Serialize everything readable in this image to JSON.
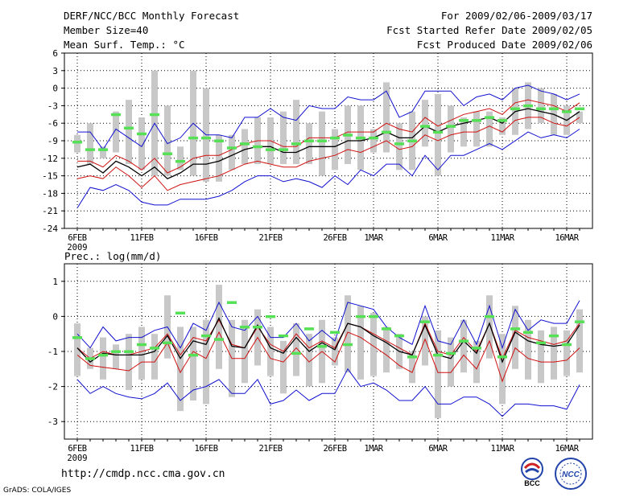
{
  "header": {
    "title": "DERF/NCC/BCC Monthly Forecast",
    "member_size": "Member Size=40",
    "variable": "Mean Surf. Temp.: °C",
    "period": "For 2009/02/06-2009/03/17",
    "start_date": "Fcst Started Refer Date 2009/02/05",
    "produced_date": "Fcst Produced Date 2009/02/06"
  },
  "footer": {
    "url": "http://cmdp.ncc.cma.gov.cn",
    "credit": "GrADS: COLA/IGES",
    "logo_left_text": "BCC",
    "logo_right_text": "NCC"
  },
  "colors": {
    "ensemble_bar": "#c8c8c8",
    "observed_mark": "#55e055",
    "ensemble_mean": "#000000",
    "spread_band": "#d01010",
    "extreme_band": "#1010d0",
    "grid": "#000000"
  },
  "chart_data": [
    {
      "type": "line",
      "title": "Mean Surf. Temp.: °C",
      "x": [
        "6FEB",
        "7FEB",
        "8FEB",
        "9FEB",
        "10FEB",
        "11FEB",
        "12FEB",
        "13FEB",
        "14FEB",
        "15FEB",
        "16FEB",
        "17FEB",
        "18FEB",
        "19FEB",
        "20FEB",
        "21FEB",
        "22FEB",
        "23FEB",
        "24FEB",
        "25FEB",
        "26FEB",
        "27FEB",
        "28FEB",
        "1MAR",
        "2MAR",
        "3MAR",
        "4MAR",
        "5MAR",
        "6MAR",
        "7MAR",
        "8MAR",
        "9MAR",
        "10MAR",
        "11MAR",
        "12MAR",
        "13MAR",
        "14MAR",
        "15MAR",
        "16MAR",
        "17MAR"
      ],
      "xtick_labels": [
        "6FEB",
        "11FEB",
        "16FEB",
        "21FEB",
        "26FEB",
        "1MAR",
        "6MAR",
        "11MAR",
        "16MAR"
      ],
      "xtick_sublabel": "2009",
      "ylim": [
        -24,
        6
      ],
      "yticks": [
        -24,
        -21,
        -18,
        -15,
        -12,
        -9,
        -6,
        -3,
        0,
        3,
        6
      ],
      "series": [
        {
          "name": "max",
          "values": [
            -7.5,
            -7.5,
            -10.5,
            -7,
            -8.5,
            -10,
            -6,
            -9.5,
            -8.5,
            -6,
            -8,
            -8,
            -8.5,
            -5,
            -5,
            -3.5,
            -5,
            -5.5,
            -3,
            -3.5,
            -3.5,
            -1.5,
            -2,
            -2,
            -0.5,
            -5,
            -4,
            -0.5,
            -0.5,
            -0.5,
            -3,
            -1.5,
            -1,
            -2,
            0,
            0.5,
            -0.5,
            -1,
            -2,
            -1
          ]
        },
        {
          "name": "upper",
          "values": [
            -12.5,
            -12.5,
            -13.5,
            -11.5,
            -12.5,
            -14,
            -12,
            -14.5,
            -13.5,
            -12,
            -11.5,
            -11.5,
            -10.5,
            -9.5,
            -9,
            -9,
            -10,
            -10,
            -8.5,
            -8.5,
            -8.5,
            -7.5,
            -7.5,
            -7.5,
            -6,
            -7,
            -7.5,
            -5,
            -6.5,
            -5.5,
            -4.5,
            -4,
            -3.5,
            -4.5,
            -2.5,
            -2,
            -2.5,
            -3,
            -4,
            -2.5
          ]
        },
        {
          "name": "mean",
          "values": [
            -13.5,
            -13,
            -14.5,
            -12.5,
            -13.5,
            -15,
            -13.5,
            -15.5,
            -14.5,
            -13,
            -13,
            -12.5,
            -11.5,
            -10.5,
            -10,
            -10,
            -11,
            -11,
            -10,
            -10,
            -10,
            -9,
            -9,
            -8.5,
            -7.5,
            -8.5,
            -8.5,
            -6.5,
            -7.5,
            -6.5,
            -6,
            -5.5,
            -5,
            -6,
            -4,
            -3.5,
            -4,
            -4.5,
            -5.5,
            -4
          ]
        },
        {
          "name": "lower",
          "values": [
            -15.5,
            -15,
            -15.5,
            -13.5,
            -15,
            -17,
            -15,
            -17.5,
            -16.5,
            -16,
            -15.5,
            -15,
            -14,
            -13,
            -12.5,
            -13,
            -13.5,
            -13.5,
            -12.5,
            -12,
            -11.5,
            -10.5,
            -11,
            -10,
            -9,
            -10.5,
            -10,
            -8,
            -9,
            -8,
            -7.5,
            -7.5,
            -6.5,
            -7.5,
            -5.5,
            -5,
            -5,
            -6,
            -6.5,
            -5
          ]
        },
        {
          "name": "min",
          "values": [
            -20.5,
            -17,
            -17.5,
            -16.5,
            -17.5,
            -19.5,
            -20,
            -20,
            -19,
            -19,
            -19,
            -18.5,
            -17.5,
            -16,
            -15,
            -15,
            -16,
            -15.5,
            -16,
            -17,
            -15,
            -16.5,
            -14,
            -15,
            -13,
            -13,
            -15,
            -11.5,
            -14,
            -11.5,
            -11.5,
            -10.5,
            -9.5,
            -10.5,
            -9,
            -7.5,
            -8.5,
            -8,
            -8.5,
            -7
          ]
        }
      ],
      "ensemble_range": {
        "low": [
          -11,
          -13,
          -12,
          -11,
          -13,
          -14,
          -15,
          -15,
          -14,
          -15,
          -16,
          -16,
          -14,
          -13,
          -13,
          -13,
          -13,
          -13,
          -13,
          -15,
          -14,
          -13,
          -14,
          -11,
          -11,
          -14,
          -14,
          -10,
          -15,
          -11,
          -10,
          -10,
          -10,
          -8,
          -8,
          -7,
          -6,
          -8,
          -8,
          -6
        ],
        "high": [
          -8,
          -6,
          -10,
          -4,
          -2,
          -5,
          3,
          -3,
          -10,
          3,
          0,
          -8,
          -8,
          -7,
          -5,
          -5,
          -4,
          -2,
          -6,
          -4,
          -7,
          -3,
          -3,
          -7,
          1,
          -6,
          -4,
          -2,
          -1,
          -3,
          -5,
          -4,
          -4,
          -5,
          0,
          1,
          0,
          -1,
          -3,
          -4
        ]
      },
      "observed": [
        -9.2,
        -10.5,
        -10.5,
        -4.5,
        -6.8,
        -7.8,
        -4.5,
        -11.2,
        -12.5,
        -8.5,
        -8.5,
        -9,
        -10.2,
        -9.5,
        -10,
        -10.5,
        -10.5,
        -9.5,
        -9,
        -9,
        -8.5,
        -8,
        -8.5,
        -8.5,
        -7.5,
        -9.5,
        -9,
        -6.5,
        -7.5,
        -6.5,
        -5.5,
        -5.5,
        -5,
        -5.5,
        -3.5,
        -3,
        -3.5,
        -3.5,
        -4,
        -3.5
      ]
    },
    {
      "type": "line",
      "title": "Prec.: log(mm/d)",
      "x": [
        "6FEB",
        "7FEB",
        "8FEB",
        "9FEB",
        "10FEB",
        "11FEB",
        "12FEB",
        "13FEB",
        "14FEB",
        "15FEB",
        "16FEB",
        "17FEB",
        "18FEB",
        "19FEB",
        "20FEB",
        "21FEB",
        "22FEB",
        "23FEB",
        "24FEB",
        "25FEB",
        "26FEB",
        "27FEB",
        "28FEB",
        "1MAR",
        "2MAR",
        "3MAR",
        "4MAR",
        "5MAR",
        "6MAR",
        "7MAR",
        "8MAR",
        "9MAR",
        "10MAR",
        "11MAR",
        "12MAR",
        "13MAR",
        "14MAR",
        "15MAR",
        "16MAR",
        "17MAR"
      ],
      "xtick_labels": [
        "6FEB",
        "11FEB",
        "16FEB",
        "21FEB",
        "26FEB",
        "1MAR",
        "6MAR",
        "11MAR",
        "16MAR"
      ],
      "xtick_sublabel": "2009",
      "ylim": [
        -3.5,
        1.5
      ],
      "yticks": [
        -3,
        -2,
        -1,
        0,
        1
      ],
      "series": [
        {
          "name": "max",
          "values": [
            -0.5,
            -0.9,
            -0.3,
            -0.7,
            -0.6,
            -0.6,
            -0.4,
            -0.3,
            -0.9,
            -0.2,
            -0.4,
            0.4,
            -0.3,
            -0.4,
            0,
            -0.6,
            -0.6,
            -0.2,
            -0.7,
            -0.4,
            -0.7,
            0.4,
            0.3,
            0.2,
            -0.3,
            -0.6,
            -0.8,
            0.3,
            -0.7,
            -0.8,
            -0.1,
            -0.8,
            0.3,
            -0.9,
            0.2,
            -0.4,
            -0.1,
            -0.2,
            -0.2,
            0.45
          ]
        },
        {
          "name": "upper",
          "values": [
            -0.9,
            -1.2,
            -1,
            -1.1,
            -1.1,
            -1,
            -0.9,
            -0.5,
            -1.1,
            -0.6,
            -0.7,
            -0.1,
            -0.8,
            -0.9,
            -0.3,
            -0.8,
            -1,
            -0.5,
            -0.9,
            -0.7,
            -0.9,
            -0.2,
            -0.3,
            -0.5,
            -0.7,
            -0.9,
            -1.1,
            -0.2,
            -1,
            -1.1,
            -0.6,
            -1,
            -0.2,
            -1.2,
            -0.4,
            -0.6,
            -0.7,
            -0.8,
            -0.7,
            -0.2
          ]
        },
        {
          "name": "mean",
          "values": [
            -0.9,
            -1.3,
            -1.05,
            -1.1,
            -1.1,
            -1.1,
            -1,
            -0.55,
            -1.2,
            -0.7,
            -0.8,
            -0.05,
            -0.85,
            -0.9,
            -0.25,
            -0.9,
            -1.05,
            -0.6,
            -1,
            -0.75,
            -0.95,
            -0.2,
            -0.3,
            -0.55,
            -0.75,
            -1,
            -1.1,
            -0.25,
            -1.1,
            -1.2,
            -0.7,
            -1.05,
            -0.2,
            -1.3,
            -0.45,
            -0.7,
            -0.8,
            -0.85,
            -0.8,
            -0.25
          ]
        },
        {
          "name": "lower",
          "values": [
            -1.1,
            -1.4,
            -1.45,
            -1.5,
            -1.55,
            -1.3,
            -1.3,
            -0.75,
            -1.6,
            -1,
            -1.2,
            -0.45,
            -1.2,
            -1.2,
            -0.6,
            -1.2,
            -1.3,
            -0.9,
            -1.3,
            -1,
            -1.3,
            -0.45,
            -0.6,
            -0.85,
            -1.1,
            -1.4,
            -1.6,
            -0.65,
            -1.6,
            -1.6,
            -1.1,
            -1.5,
            -0.7,
            -1.85,
            -0.9,
            -1.2,
            -1.3,
            -1.3,
            -1.25,
            -0.9
          ]
        },
        {
          "name": "min",
          "values": [
            -1.8,
            -2.2,
            -2,
            -2.2,
            -2.3,
            -2.35,
            -2.2,
            -1.9,
            -2.4,
            -2.1,
            -2,
            -1.8,
            -2.2,
            -2.2,
            -1.8,
            -2.5,
            -2.4,
            -2.1,
            -2.4,
            -2.2,
            -2.2,
            -1.5,
            -2,
            -1.9,
            -2.1,
            -2.4,
            -2.4,
            -2,
            -2.5,
            -2.5,
            -2.3,
            -2.3,
            -2.5,
            -2.85,
            -2.5,
            -2.5,
            -2.55,
            -2.55,
            -2.65,
            -1.95
          ]
        }
      ],
      "ensemble_range": {
        "low": [
          -1.7,
          -1.5,
          -1.8,
          -1.5,
          -2.1,
          -1.8,
          -1.8,
          -1.2,
          -2.7,
          -2.4,
          -2.5,
          -1.5,
          -2.3,
          -1.9,
          -1.4,
          -1.7,
          -2.2,
          -1.7,
          -2,
          -1.9,
          -1.4,
          -1.6,
          -1.8,
          -1.7,
          -1.6,
          -1.5,
          -1.9,
          -1.4,
          -2.9,
          -2,
          -1.6,
          -1.9,
          -1.2,
          -2.5,
          -1.5,
          -1.8,
          -1.9,
          -1.8,
          -1.7,
          -1.6
        ],
        "high": [
          -0.2,
          -0.9,
          -0.6,
          -0.8,
          -0.5,
          -0.3,
          -0.5,
          0.6,
          -0.3,
          -0.3,
          -0.1,
          0.9,
          -0.1,
          -0.1,
          0.2,
          -0.3,
          -0.7,
          -0.2,
          -0.5,
          -0.1,
          -0.6,
          0.6,
          0.3,
          0.1,
          -0.3,
          -0.5,
          -1,
          0,
          -0.4,
          -0.6,
          -0.1,
          -0.7,
          0.6,
          -0.5,
          0.3,
          -0.1,
          -0.4,
          -0.3,
          -0.4,
          0.2
        ]
      },
      "observed": [
        -0.6,
        -1.2,
        -1.1,
        -1,
        -1,
        -0.8,
        -0.9,
        -0.75,
        0.1,
        -1.1,
        -0.55,
        -0.65,
        0.4,
        -0.3,
        -0.3,
        0,
        -0.55,
        -1.05,
        -0.35,
        -0.85,
        -0.45,
        -0.8,
        0,
        0,
        -0.35,
        -0.55,
        -1.15,
        -0.15,
        -1.1,
        -1.05,
        -0.7,
        -0.9,
        0,
        -1.15,
        -0.35,
        -0.45,
        -0.75,
        -0.55,
        -0.8,
        -0.15
      ]
    }
  ]
}
